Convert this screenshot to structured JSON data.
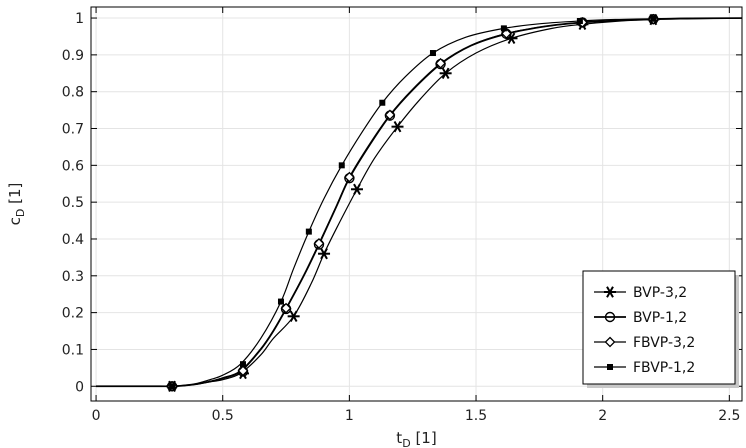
{
  "chart_data": {
    "type": "line",
    "xlabel": "t",
    "xlabel_sub": "D",
    "xlabel_unit": " [1]",
    "ylabel": "c",
    "ylabel_sub": "D",
    "ylabel_unit": " [1]",
    "xlim": [
      -0.02,
      2.55
    ],
    "ylim": [
      -0.04,
      1.03
    ],
    "xticks": [
      0,
      0.5,
      1,
      1.5,
      2,
      2.5
    ],
    "xtick_labels": [
      "0",
      "0.5",
      "1",
      "1.5",
      "2",
      "2.5"
    ],
    "yticks": [
      0,
      0.1,
      0.2,
      0.3,
      0.4,
      0.5,
      0.6,
      0.7,
      0.8,
      0.9,
      1
    ],
    "ytick_labels": [
      "0",
      "0.1",
      "0.2",
      "0.3",
      "0.4",
      "0.5",
      "0.6",
      "0.7",
      "0.8",
      "0.9",
      "1"
    ],
    "grid": true,
    "legend_position": "bottom-right",
    "series": [
      {
        "name": "BVP-3,2",
        "marker": "asterisk",
        "curve_x": [
          0,
          0.25,
          0.3,
          0.35,
          0.4,
          0.45,
          0.5,
          0.57,
          0.65,
          0.7,
          0.78,
          0.85,
          0.9,
          0.95,
          1.03,
          1.1,
          1.19,
          1.28,
          1.38,
          1.5,
          1.64,
          1.8,
          1.92,
          2.05,
          2.2,
          2.35,
          2.55
        ],
        "curve_y": [
          0,
          0,
          0,
          0.002,
          0.006,
          0.012,
          0.018,
          0.035,
          0.085,
          0.13,
          0.19,
          0.28,
          0.36,
          0.43,
          0.535,
          0.62,
          0.705,
          0.78,
          0.85,
          0.905,
          0.945,
          0.972,
          0.983,
          0.991,
          0.996,
          0.998,
          1
        ],
        "marker_x": [
          0.3,
          0.58,
          0.78,
          0.9,
          1.03,
          1.19,
          1.38,
          1.64,
          1.92,
          2.2
        ],
        "marker_y": [
          0,
          0.035,
          0.19,
          0.36,
          0.535,
          0.705,
          0.85,
          0.945,
          0.983,
          0.996
        ]
      },
      {
        "name": "BVP-1,2",
        "marker": "circle",
        "curve_x": [
          0,
          0.25,
          0.3,
          0.35,
          0.4,
          0.45,
          0.5,
          0.57,
          0.65,
          0.7,
          0.75,
          0.82,
          0.88,
          0.95,
          1.0,
          1.08,
          1.16,
          1.25,
          1.36,
          1.48,
          1.62,
          1.78,
          1.92,
          2.05,
          2.2,
          2.35,
          2.55
        ],
        "curve_y": [
          0,
          0,
          0,
          0.002,
          0.006,
          0.013,
          0.022,
          0.04,
          0.1,
          0.15,
          0.21,
          0.3,
          0.385,
          0.49,
          0.565,
          0.655,
          0.735,
          0.805,
          0.875,
          0.925,
          0.957,
          0.978,
          0.988,
          0.993,
          0.997,
          0.999,
          1
        ],
        "marker_x": [
          0.3,
          0.58,
          0.75,
          0.88,
          1.0,
          1.16,
          1.36,
          1.62,
          1.92,
          2.2
        ],
        "marker_y": [
          0,
          0.04,
          0.21,
          0.385,
          0.565,
          0.735,
          0.875,
          0.957,
          0.988,
          0.997
        ]
      },
      {
        "name": "FBVP-3,2",
        "marker": "diamond",
        "curve_x": [
          0,
          0.25,
          0.3,
          0.35,
          0.4,
          0.45,
          0.5,
          0.57,
          0.65,
          0.7,
          0.75,
          0.82,
          0.88,
          0.95,
          1.0,
          1.08,
          1.16,
          1.25,
          1.36,
          1.48,
          1.62,
          1.78,
          1.92,
          2.05,
          2.2,
          2.35,
          2.55
        ],
        "curve_y": [
          0,
          0,
          0,
          0.002,
          0.006,
          0.013,
          0.023,
          0.042,
          0.102,
          0.152,
          0.212,
          0.302,
          0.388,
          0.492,
          0.568,
          0.658,
          0.737,
          0.807,
          0.877,
          0.926,
          0.958,
          0.978,
          0.988,
          0.993,
          0.997,
          0.999,
          1
        ],
        "marker_x": [
          0.3,
          0.58,
          0.75,
          0.88,
          1.0,
          1.16,
          1.36,
          1.62,
          1.92,
          2.2
        ],
        "marker_y": [
          0,
          0.042,
          0.212,
          0.388,
          0.568,
          0.737,
          0.877,
          0.958,
          0.988,
          0.997
        ]
      },
      {
        "name": "FBVP-1,2",
        "marker": "square",
        "curve_x": [
          0,
          0.25,
          0.3,
          0.35,
          0.4,
          0.45,
          0.5,
          0.57,
          0.65,
          0.73,
          0.78,
          0.84,
          0.9,
          0.97,
          1.05,
          1.13,
          1.22,
          1.33,
          1.46,
          1.61,
          1.76,
          1.91,
          2.05,
          2.2,
          2.35,
          2.55
        ],
        "curve_y": [
          0,
          0,
          0,
          0.003,
          0.008,
          0.018,
          0.03,
          0.06,
          0.13,
          0.23,
          0.32,
          0.42,
          0.51,
          0.6,
          0.69,
          0.77,
          0.84,
          0.905,
          0.948,
          0.972,
          0.985,
          0.992,
          0.996,
          0.998,
          0.999,
          1
        ],
        "marker_x": [
          0.3,
          0.58,
          0.73,
          0.84,
          0.97,
          1.13,
          1.33,
          1.61,
          1.91,
          2.2
        ],
        "marker_y": [
          0,
          0.06,
          0.23,
          0.42,
          0.6,
          0.77,
          0.905,
          0.972,
          0.992,
          0.998
        ]
      }
    ]
  }
}
